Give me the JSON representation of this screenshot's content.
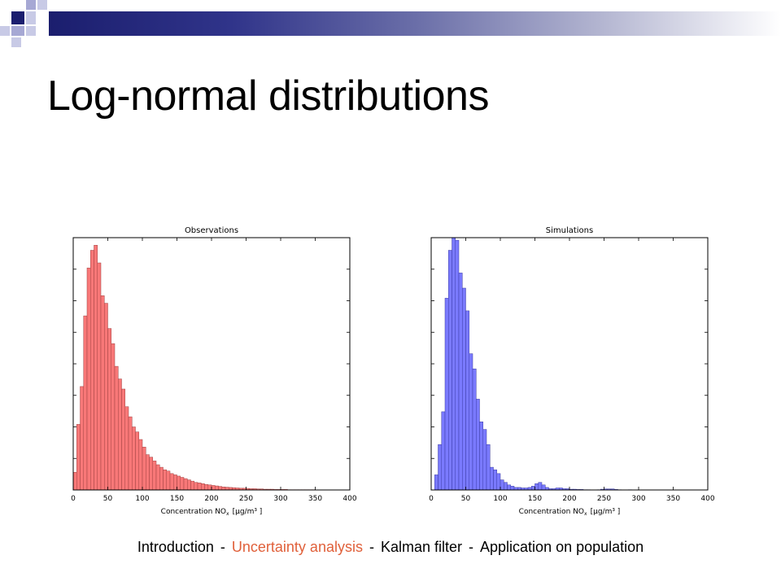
{
  "slide": {
    "title": "Log-normal distributions",
    "accent": "#1b1e6e"
  },
  "footer": {
    "items": [
      "Introduction",
      "Uncertainty analysis",
      "Kalman filter",
      "Application on population"
    ],
    "separator": "-",
    "active_index": 1,
    "active_color": "#e0603a"
  },
  "chart_data": [
    {
      "type": "bar",
      "title": "Observations",
      "xlabel": "Concentration NO",
      "xlabel_sub": "x",
      "xlabel_unit": "[μg/m³ ]",
      "color": "#f87878",
      "edge": "#a04040",
      "xlim": [
        0,
        400
      ],
      "bin_width": 5,
      "bin_start": 0,
      "xticks": [
        0,
        50,
        100,
        150,
        200,
        250,
        300,
        350,
        400
      ],
      "ylim": [
        0,
        100
      ],
      "values": [
        7,
        26,
        41,
        69,
        88,
        95,
        97,
        90,
        77,
        74,
        64,
        58,
        49,
        44,
        40,
        33,
        29,
        25,
        23,
        20,
        17,
        14,
        13,
        11.5,
        10,
        9,
        8,
        7.5,
        6.5,
        6,
        5.5,
        5,
        4.5,
        4,
        3.5,
        3,
        2.8,
        2.5,
        2.2,
        2,
        1.8,
        1.6,
        1.4,
        1.2,
        1.1,
        1,
        0.9,
        0.8,
        0.7,
        0.7,
        0.6,
        0.5,
        0.5,
        0.4,
        0.4,
        0.3,
        0.3,
        0.3,
        0.2,
        0.2,
        0.2,
        0.2,
        0.1,
        0.1,
        0.1,
        0.1,
        0.1,
        0.1,
        0.1,
        0.1
      ]
    },
    {
      "type": "bar",
      "title": "Simulations",
      "xlabel": "Concentration NO",
      "xlabel_sub": "x",
      "xlabel_unit": "[μg/m³ ]",
      "color": "#7a7aff",
      "edge": "#3a3aa0",
      "xlim": [
        0,
        400
      ],
      "bin_width": 5,
      "bin_start": 5,
      "xticks": [
        0,
        50,
        100,
        150,
        200,
        250,
        300,
        350,
        400
      ],
      "ylim": [
        0,
        100
      ],
      "values": [
        6,
        18,
        31,
        76,
        95,
        100,
        99,
        86,
        80,
        71,
        54,
        48,
        36,
        27,
        24,
        18,
        9,
        8,
        6.5,
        4,
        3,
        2,
        1.5,
        1,
        1,
        0.8,
        0.8,
        1,
        1.5,
        2.5,
        3,
        2,
        1,
        0.5,
        0.5,
        0.8,
        0.8,
        0.5,
        0.5,
        0.3,
        0.3,
        0.2,
        0.2,
        0.1,
        0.1,
        0,
        0,
        0.1,
        0.3,
        0.4,
        0.4,
        0.4,
        0.2,
        0.1,
        0,
        0,
        0.1
      ]
    }
  ]
}
